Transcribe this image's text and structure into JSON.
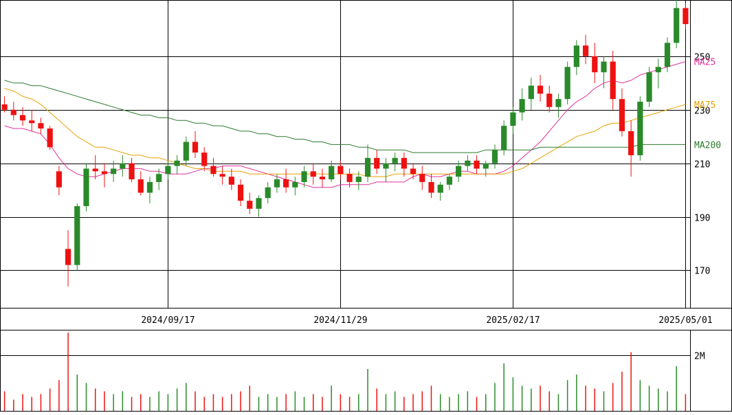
{
  "chart_data": {
    "type": "candlestick",
    "title": "",
    "price_axis": {
      "ylim": [
        156,
        271
      ],
      "ticks": [
        170,
        190,
        210,
        230,
        250
      ]
    },
    "date_labels": [
      "2024/09/17",
      "2024/11/29",
      "2025/02/17",
      "2025/05/01"
    ],
    "volume_axis": {
      "ylim": [
        0,
        2.9
      ],
      "ticks": [
        {
          "value": 2,
          "label": "2M"
        }
      ]
    },
    "grid": true,
    "series": [
      {
        "name": "MA25",
        "color": "#e0309a",
        "values": [
          224,
          223,
          223,
          222,
          221,
          217,
          212,
          208,
          206,
          205,
          205,
          206,
          207,
          208,
          208,
          208,
          207,
          207,
          206,
          206,
          206,
          207,
          208,
          208,
          209,
          209,
          209,
          208,
          207,
          206,
          205,
          204,
          203,
          202,
          201,
          201,
          201,
          202,
          202,
          202,
          202,
          203,
          203,
          203,
          203,
          205,
          206,
          205,
          205,
          206,
          207,
          207,
          206,
          206,
          206,
          207,
          209,
          212,
          215,
          218,
          222,
          226,
          230,
          233,
          235,
          238,
          240,
          241,
          240,
          241,
          243,
          244,
          245,
          246,
          247,
          248
        ]
      },
      {
        "name": "MA75",
        "color": "#e8a000",
        "values": [
          238,
          237,
          235,
          234,
          232,
          229,
          226,
          223,
          220,
          218,
          216,
          216,
          215,
          214,
          213,
          213,
          212,
          212,
          211,
          210,
          209,
          208,
          208,
          207,
          207,
          207,
          207,
          206,
          206,
          206,
          206,
          206,
          206,
          206,
          206,
          206,
          206,
          206,
          206,
          206,
          205,
          205,
          205,
          206,
          206,
          206,
          206,
          206,
          206,
          206,
          206,
          206,
          206,
          206,
          206,
          206,
          207,
          208,
          210,
          212,
          214,
          216,
          218,
          220,
          221,
          222,
          224,
          225,
          225,
          226,
          227,
          228,
          229,
          230,
          231,
          232
        ]
      },
      {
        "name": "MA200",
        "color": "#2a7a2a",
        "values": [
          241,
          240,
          240,
          239,
          239,
          238,
          237,
          236,
          235,
          234,
          233,
          232,
          231,
          230,
          229,
          228,
          228,
          227,
          227,
          226,
          226,
          225,
          225,
          224,
          224,
          223,
          222,
          222,
          221,
          221,
          220,
          220,
          219,
          219,
          218,
          218,
          217,
          217,
          217,
          216,
          216,
          215,
          215,
          215,
          215,
          214,
          214,
          214,
          214,
          214,
          214,
          214,
          214,
          215,
          215,
          215,
          215,
          215,
          215,
          216,
          216,
          216,
          216,
          216,
          216,
          216,
          216,
          216,
          216,
          216,
          217,
          217,
          217,
          217,
          217,
          217
        ]
      }
    ],
    "ohlc": [
      [
        232,
        235,
        229,
        230
      ],
      [
        230,
        233,
        226,
        228
      ],
      [
        228,
        231,
        224,
        226
      ],
      [
        226,
        230,
        222,
        225
      ],
      [
        225,
        227,
        221,
        223
      ],
      [
        223,
        224,
        215,
        216
      ],
      [
        207,
        209,
        198,
        201
      ],
      [
        178,
        185,
        164,
        172
      ],
      [
        172,
        195,
        170,
        194
      ],
      [
        194,
        210,
        192,
        208
      ],
      [
        208,
        213,
        204,
        207
      ],
      [
        207,
        210,
        201,
        206
      ],
      [
        206,
        211,
        203,
        208
      ],
      [
        208,
        213,
        205,
        210
      ],
      [
        210,
        212,
        203,
        204
      ],
      [
        204,
        207,
        198,
        199
      ],
      [
        199,
        205,
        195,
        203
      ],
      [
        203,
        208,
        200,
        206
      ],
      [
        206,
        211,
        204,
        209
      ],
      [
        209,
        213,
        206,
        211
      ],
      [
        211,
        220,
        209,
        218
      ],
      [
        218,
        222,
        212,
        214
      ],
      [
        214,
        216,
        207,
        209
      ],
      [
        209,
        212,
        205,
        206
      ],
      [
        206,
        209,
        202,
        205
      ],
      [
        205,
        208,
        200,
        202
      ],
      [
        202,
        204,
        194,
        196
      ],
      [
        196,
        199,
        191,
        193
      ],
      [
        193,
        198,
        190,
        197
      ],
      [
        197,
        203,
        195,
        201
      ],
      [
        201,
        206,
        199,
        204
      ],
      [
        204,
        208,
        199,
        201
      ],
      [
        201,
        205,
        198,
        203
      ],
      [
        203,
        209,
        201,
        207
      ],
      [
        207,
        210,
        202,
        205
      ],
      [
        205,
        208,
        201,
        204
      ],
      [
        204,
        211,
        203,
        209
      ],
      [
        209,
        211,
        204,
        206
      ],
      [
        206,
        208,
        201,
        203
      ],
      [
        203,
        207,
        200,
        205
      ],
      [
        205,
        217,
        203,
        212
      ],
      [
        212,
        215,
        206,
        208
      ],
      [
        208,
        212,
        203,
        210
      ],
      [
        210,
        214,
        207,
        212
      ],
      [
        212,
        214,
        205,
        208
      ],
      [
        208,
        210,
        204,
        206
      ],
      [
        206,
        209,
        200,
        203
      ],
      [
        203,
        206,
        197,
        199
      ],
      [
        199,
        203,
        196,
        202
      ],
      [
        202,
        206,
        200,
        205
      ],
      [
        205,
        211,
        203,
        209
      ],
      [
        209,
        213,
        207,
        211
      ],
      [
        211,
        213,
        206,
        208
      ],
      [
        208,
        211,
        205,
        210
      ],
      [
        210,
        217,
        208,
        215
      ],
      [
        215,
        226,
        213,
        224
      ],
      [
        224,
        231,
        221,
        229
      ],
      [
        229,
        238,
        226,
        234
      ],
      [
        234,
        242,
        230,
        239
      ],
      [
        239,
        243,
        233,
        236
      ],
      [
        236,
        239,
        229,
        231
      ],
      [
        231,
        236,
        227,
        234
      ],
      [
        234,
        248,
        232,
        246
      ],
      [
        246,
        256,
        243,
        254
      ],
      [
        254,
        258,
        247,
        250
      ],
      [
        250,
        255,
        240,
        244
      ],
      [
        244,
        250,
        238,
        248
      ],
      [
        248,
        252,
        230,
        234
      ],
      [
        234,
        238,
        220,
        222
      ],
      [
        222,
        226,
        205,
        213
      ],
      [
        213,
        235,
        211,
        233
      ],
      [
        233,
        246,
        231,
        244
      ],
      [
        244,
        249,
        238,
        246
      ],
      [
        246,
        257,
        244,
        255
      ],
      [
        255,
        271,
        253,
        268
      ],
      [
        268,
        270,
        260,
        262
      ]
    ],
    "volume_millions": [
      0.7,
      0.4,
      0.6,
      0.5,
      0.6,
      0.8,
      1.1,
      2.8,
      1.3,
      1.0,
      0.8,
      0.7,
      0.6,
      0.7,
      0.5,
      0.6,
      0.5,
      0.7,
      0.6,
      0.8,
      1.0,
      0.7,
      0.5,
      0.6,
      0.5,
      0.6,
      0.7,
      0.9,
      0.5,
      0.6,
      0.5,
      0.6,
      0.7,
      0.5,
      0.6,
      0.5,
      0.9,
      0.6,
      0.5,
      0.6,
      1.5,
      0.8,
      0.6,
      0.7,
      0.5,
      0.6,
      0.7,
      0.9,
      0.6,
      0.5,
      0.6,
      0.7,
      0.5,
      0.6,
      1.0,
      1.7,
      1.2,
      0.9,
      0.8,
      0.9,
      0.7,
      0.6,
      1.1,
      1.3,
      0.9,
      0.8,
      0.7,
      1.0,
      1.4,
      2.1,
      1.1,
      0.9,
      0.8,
      0.7,
      1.6,
      0.6
    ],
    "up_color": "#2a8a2a",
    "down_color": "#ee1111",
    "legend_position": "right"
  }
}
